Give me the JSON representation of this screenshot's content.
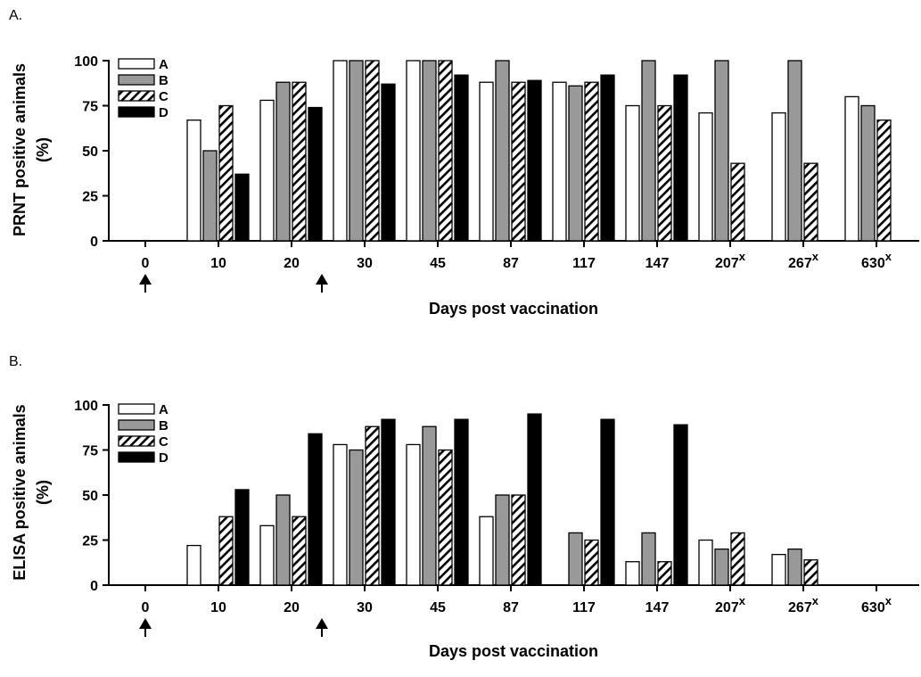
{
  "colors": {
    "A": "#ffffff",
    "B": "#999999",
    "C": "hatch",
    "D": "#000000",
    "stroke": "#000000"
  },
  "chart_data": [
    {
      "panel_label": "A.",
      "type": "bar",
      "title": "",
      "ylabel_line1": "PRNT positive animals",
      "ylabel_line2": "(%)",
      "xlabel": "Days post vaccination",
      "ylim": [
        0,
        100
      ],
      "yticks": [
        "0",
        "25",
        "50",
        "75",
        "100"
      ],
      "categories": [
        {
          "label": "0",
          "sup": ""
        },
        {
          "label": "10",
          "sup": ""
        },
        {
          "label": "20",
          "sup": ""
        },
        {
          "label": "30",
          "sup": ""
        },
        {
          "label": "45",
          "sup": ""
        },
        {
          "label": "87",
          "sup": ""
        },
        {
          "label": "117",
          "sup": ""
        },
        {
          "label": "147",
          "sup": ""
        },
        {
          "label": "207",
          "sup": "x"
        },
        {
          "label": "267",
          "sup": "x"
        },
        {
          "label": "630",
          "sup": "x"
        }
      ],
      "vaccination_arrows_at": [
        "0",
        "20"
      ],
      "legend_position": "top-left",
      "grid": false,
      "series": [
        {
          "name": "A",
          "values": [
            null,
            67,
            78,
            100,
            100,
            88,
            88,
            75,
            71,
            71,
            80
          ]
        },
        {
          "name": "B",
          "values": [
            null,
            50,
            88,
            100,
            100,
            100,
            86,
            100,
            100,
            100,
            75
          ]
        },
        {
          "name": "C",
          "values": [
            null,
            75,
            88,
            100,
            100,
            88,
            88,
            75,
            43,
            43,
            67
          ]
        },
        {
          "name": "D",
          "values": [
            null,
            37,
            74,
            87,
            92,
            89,
            92,
            92,
            null,
            null,
            null
          ]
        }
      ]
    },
    {
      "panel_label": "B.",
      "type": "bar",
      "title": "",
      "ylabel_line1": "ELISA positive animals",
      "ylabel_line2": "(%)",
      "xlabel": "Days post vaccination",
      "ylim": [
        0,
        100
      ],
      "yticks": [
        "0",
        "25",
        "50",
        "75",
        "100"
      ],
      "categories": [
        {
          "label": "0",
          "sup": ""
        },
        {
          "label": "10",
          "sup": ""
        },
        {
          "label": "20",
          "sup": ""
        },
        {
          "label": "30",
          "sup": ""
        },
        {
          "label": "45",
          "sup": ""
        },
        {
          "label": "87",
          "sup": ""
        },
        {
          "label": "117",
          "sup": ""
        },
        {
          "label": "147",
          "sup": ""
        },
        {
          "label": "207",
          "sup": "x"
        },
        {
          "label": "267",
          "sup": "x"
        },
        {
          "label": "630",
          "sup": "x"
        }
      ],
      "vaccination_arrows_at": [
        "0",
        "20"
      ],
      "legend_position": "top-left",
      "grid": false,
      "series": [
        {
          "name": "A",
          "values": [
            null,
            22,
            33,
            78,
            78,
            38,
            null,
            13,
            25,
            17,
            null
          ]
        },
        {
          "name": "B",
          "values": [
            null,
            null,
            50,
            75,
            88,
            50,
            29,
            29,
            20,
            20,
            null
          ]
        },
        {
          "name": "C",
          "values": [
            null,
            38,
            38,
            88,
            75,
            50,
            25,
            13,
            29,
            14,
            null
          ]
        },
        {
          "name": "D",
          "values": [
            null,
            53,
            84,
            92,
            92,
            95,
            92,
            89,
            null,
            null,
            null
          ]
        }
      ]
    }
  ]
}
